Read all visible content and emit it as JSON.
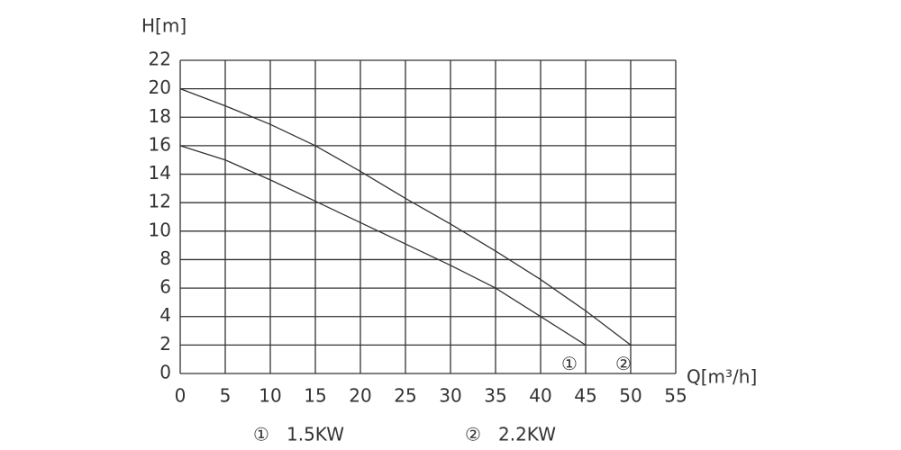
{
  "chart_data": {
    "type": "line",
    "y_label": "H[m]",
    "x_label": "Q[m³/h]",
    "xlim": [
      0,
      55
    ],
    "xticks": [
      0,
      5,
      10,
      15,
      20,
      25,
      30,
      35,
      40,
      45,
      50,
      55
    ],
    "ylim": [
      0,
      22
    ],
    "yticks": [
      0,
      2,
      4,
      6,
      8,
      10,
      12,
      14,
      16,
      18,
      20,
      22
    ],
    "grid": true,
    "series": [
      {
        "name": "1.5KW",
        "marker": "①",
        "color": "#333333",
        "x": [
          0,
          5,
          10,
          15,
          20,
          25,
          30,
          35,
          40,
          45
        ],
        "values": [
          16,
          15,
          13.6,
          12.1,
          10.6,
          9.1,
          7.6,
          6,
          4,
          2
        ]
      },
      {
        "name": "2.2KW",
        "marker": "②",
        "color": "#333333",
        "x": [
          0,
          5,
          10,
          15,
          20,
          25,
          30,
          35,
          40,
          45,
          50
        ],
        "values": [
          20,
          18.8,
          17.5,
          16,
          14.2,
          12.3,
          10.5,
          8.6,
          6.6,
          4.4,
          2
        ]
      }
    ]
  }
}
